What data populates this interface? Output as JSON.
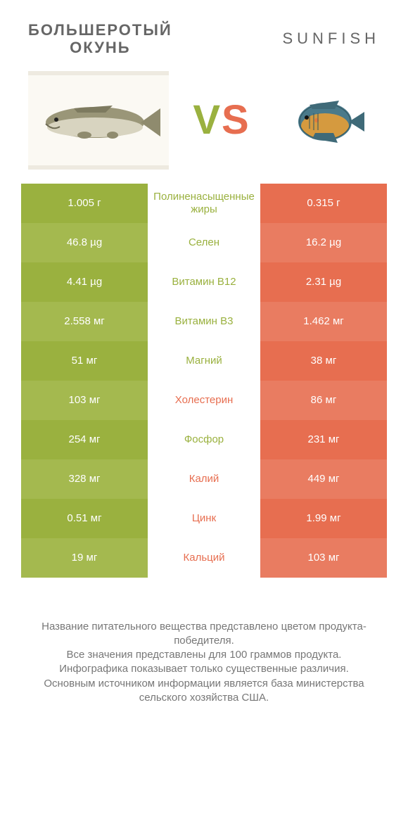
{
  "header": {
    "left_line1": "БОЛЬШЕРОТЫЙ",
    "left_line2": "ОКУНЬ",
    "right": "SUNFISH"
  },
  "vs": {
    "v": "V",
    "s": "S"
  },
  "colors": {
    "green": "#9ab13f",
    "green_alt": "#a4b94f",
    "orange": "#e76e50",
    "orange_alt": "#e97c61"
  },
  "rows": [
    {
      "left": "1.005 г",
      "mid": "Полиненасыщенные жиры",
      "right": "0.315 г",
      "winner": "left"
    },
    {
      "left": "46.8 µg",
      "mid": "Селен",
      "right": "16.2 µg",
      "winner": "left"
    },
    {
      "left": "4.41 µg",
      "mid": "Витамин B12",
      "right": "2.31 µg",
      "winner": "left"
    },
    {
      "left": "2.558 мг",
      "mid": "Витамин B3",
      "right": "1.462 мг",
      "winner": "left"
    },
    {
      "left": "51 мг",
      "mid": "Магний",
      "right": "38 мг",
      "winner": "left"
    },
    {
      "left": "103 мг",
      "mid": "Холестерин",
      "right": "86 мг",
      "winner": "right"
    },
    {
      "left": "254 мг",
      "mid": "Фосфор",
      "right": "231 мг",
      "winner": "left"
    },
    {
      "left": "328 мг",
      "mid": "Калий",
      "right": "449 мг",
      "winner": "right"
    },
    {
      "left": "0.51 мг",
      "mid": "Цинк",
      "right": "1.99 мг",
      "winner": "right"
    },
    {
      "left": "19 мг",
      "mid": "Кальций",
      "right": "103 мг",
      "winner": "right"
    }
  ],
  "footer": {
    "l1": "Название питательного вещества представлено цветом продукта-победителя.",
    "l2": "Все значения представлены для 100 граммов продукта.",
    "l3": "Инфографика показывает только существенные различия.",
    "l4": "Основным источником информации является база министерства сельского хозяйства США."
  }
}
